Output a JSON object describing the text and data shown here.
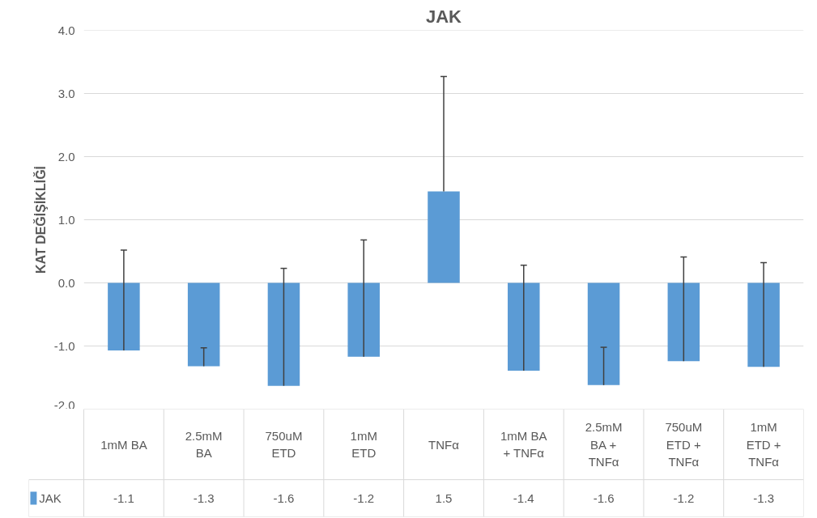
{
  "chart_data": {
    "type": "bar",
    "title": "JAK",
    "ylabel": "KAT DEĞİŞİKLİĞİ",
    "categories": [
      "1mM BA",
      "2.5mM BA",
      "750uM ETD",
      "1mM ETD",
      "TNFα",
      "1mM BA + TNFα",
      "2.5mM BA + TNFα",
      "750uM ETD + TNFα",
      "1mM ETD + TNFα"
    ],
    "series": [
      {
        "name": "JAK",
        "color": "#5b9bd5",
        "values": [
          -1.07,
          -1.32,
          -1.63,
          -1.17,
          1.45,
          -1.39,
          -1.62,
          -1.24,
          -1.33
        ],
        "value_labels": [
          "-1.1",
          "-1.3",
          "-1.6",
          "-1.2",
          "1.5",
          "-1.4",
          "-1.6",
          "-1.2",
          "-1.3"
        ],
        "errors": [
          [
            -1.07,
            0.52
          ],
          [
            -1.32,
            -1.03
          ],
          [
            -1.63,
            0.23
          ],
          [
            -1.17,
            0.68
          ],
          [
            1.45,
            3.27
          ],
          [
            -1.39,
            0.28
          ],
          [
            -1.62,
            -1.02
          ],
          [
            -1.24,
            0.41
          ],
          [
            -1.33,
            0.32
          ]
        ]
      }
    ],
    "ylim": [
      -2,
      4
    ],
    "yticks": [
      {
        "value": -2,
        "label": "-2.0"
      },
      {
        "value": -1,
        "label": "-1.0"
      },
      {
        "value": 0,
        "label": "0.0"
      },
      {
        "value": 1,
        "label": "1.0"
      },
      {
        "value": 2,
        "label": "2.0"
      },
      {
        "value": 3,
        "label": "3.0"
      },
      {
        "value": 4,
        "label": "4.0"
      }
    ],
    "grid": "y",
    "legend": "bottom"
  }
}
